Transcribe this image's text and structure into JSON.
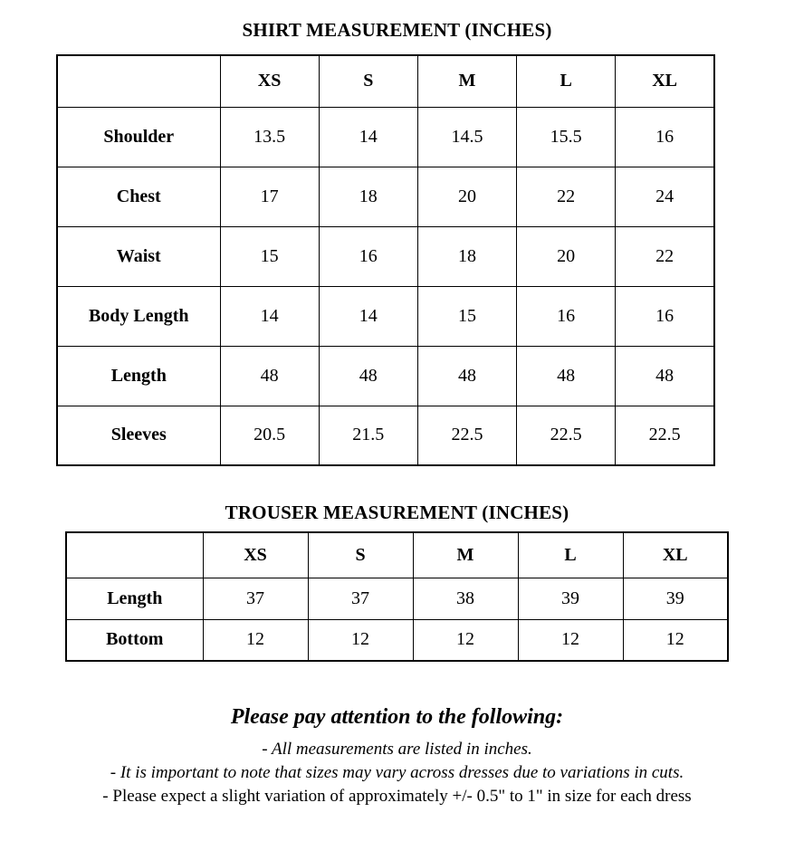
{
  "shirt_table": {
    "title": "SHIRT MEASUREMENT (INCHES)",
    "columns": [
      "",
      "XS",
      "S",
      "M",
      "L",
      "XL"
    ],
    "rows": [
      {
        "label": "Shoulder",
        "values": [
          "13.5",
          "14",
          "14.5",
          "15.5",
          "16"
        ]
      },
      {
        "label": "Chest",
        "values": [
          "17",
          "18",
          "20",
          "22",
          "24"
        ]
      },
      {
        "label": "Waist",
        "values": [
          "15",
          "16",
          "18",
          "20",
          "22"
        ]
      },
      {
        "label": "Body Length",
        "values": [
          "14",
          "14",
          "15",
          "16",
          "16"
        ]
      },
      {
        "label": "Length",
        "values": [
          "48",
          "48",
          "48",
          "48",
          "48"
        ]
      },
      {
        "label": "Sleeves",
        "values": [
          "20.5",
          "21.5",
          "22.5",
          "22.5",
          "22.5"
        ]
      }
    ]
  },
  "trouser_table": {
    "title": "TROUSER MEASUREMENT (INCHES)",
    "columns": [
      "",
      "XS",
      "S",
      "M",
      "L",
      "XL"
    ],
    "rows": [
      {
        "label": "Length",
        "values": [
          "37",
          "37",
          "38",
          "39",
          "39"
        ]
      },
      {
        "label": "Bottom",
        "values": [
          "12",
          "12",
          "12",
          "12",
          "12"
        ]
      }
    ]
  },
  "notes": {
    "heading": "Please pay attention to the following:",
    "items": [
      "- All measurements are listed in inches.",
      "- It is important to note that sizes may vary across dresses due to variations in cuts.",
      "- Please expect a slight variation of approximately +/- 0.5\" to 1\" in size for each dress"
    ]
  },
  "colors": {
    "text": "#000000",
    "border": "#000000",
    "background": "#ffffff"
  }
}
